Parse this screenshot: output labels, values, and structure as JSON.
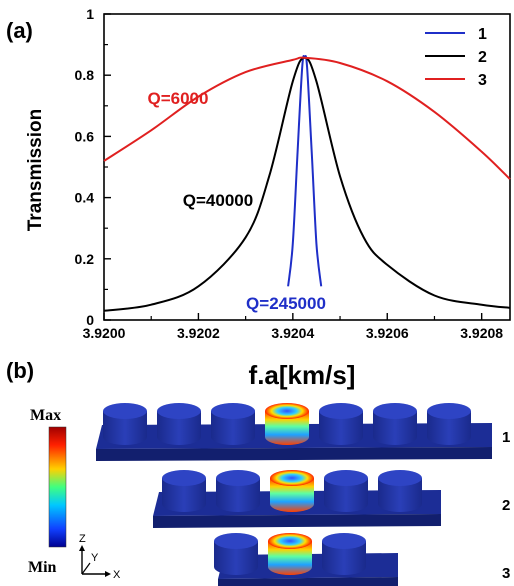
{
  "panel_a_label": "(a)",
  "panel_b_label": "(b)",
  "chart_data": {
    "type": "line",
    "xlabel": "f.a[km/s]",
    "ylabel": "Transmission",
    "xlim": [
      3.92,
      3.92086
    ],
    "ylim": [
      0,
      1
    ],
    "x_ticks": [
      "3.9200",
      "3.9202",
      "3.9204",
      "3.9206",
      "3.9208"
    ],
    "y_ticks": [
      "0",
      "0.2",
      "0.4",
      "0.6",
      "0.8",
      "1"
    ],
    "legend_position": "top-right",
    "f0": 3.920425,
    "peak": 0.857,
    "series": [
      {
        "name": "1",
        "color": "#1f2fc8",
        "annotation": "Q=245000",
        "x": [
          3.92039,
          3.9204,
          3.92041,
          3.92042,
          3.920425,
          3.92043,
          3.92044,
          3.92045,
          3.92046
        ],
        "y": [
          0.11,
          0.25,
          0.55,
          0.83,
          0.857,
          0.83,
          0.55,
          0.25,
          0.11
        ]
      },
      {
        "name": "2",
        "color": "#000000",
        "annotation": "Q=40000",
        "x": [
          3.92,
          3.9201,
          3.9202,
          3.9203,
          3.92035,
          3.9204,
          3.920425,
          3.92045,
          3.9205,
          3.92055,
          3.9206,
          3.9207,
          3.9208,
          3.92086
        ],
        "y": [
          0.03,
          0.05,
          0.11,
          0.27,
          0.47,
          0.78,
          0.857,
          0.78,
          0.47,
          0.27,
          0.18,
          0.08,
          0.05,
          0.04
        ]
      },
      {
        "name": "3",
        "color": "#e02020",
        "annotation": "Q=6000",
        "x": [
          3.92,
          3.9201,
          3.9202,
          3.9203,
          3.9204,
          3.920425,
          3.9205,
          3.9206,
          3.9207,
          3.9208,
          3.92086
        ],
        "y": [
          0.52,
          0.62,
          0.73,
          0.81,
          0.85,
          0.857,
          0.84,
          0.78,
          0.68,
          0.55,
          0.46
        ]
      }
    ]
  },
  "colorbar": {
    "max_label": "Max",
    "min_label": "Min"
  },
  "axes_triad": {
    "z": "Z",
    "y": "Y",
    "x": "X"
  },
  "rows": [
    {
      "label": "1",
      "cylinders": 7,
      "active": 3
    },
    {
      "label": "2",
      "cylinders": 5,
      "active": 2
    },
    {
      "label": "3",
      "cylinders": 3,
      "active": 1
    }
  ]
}
